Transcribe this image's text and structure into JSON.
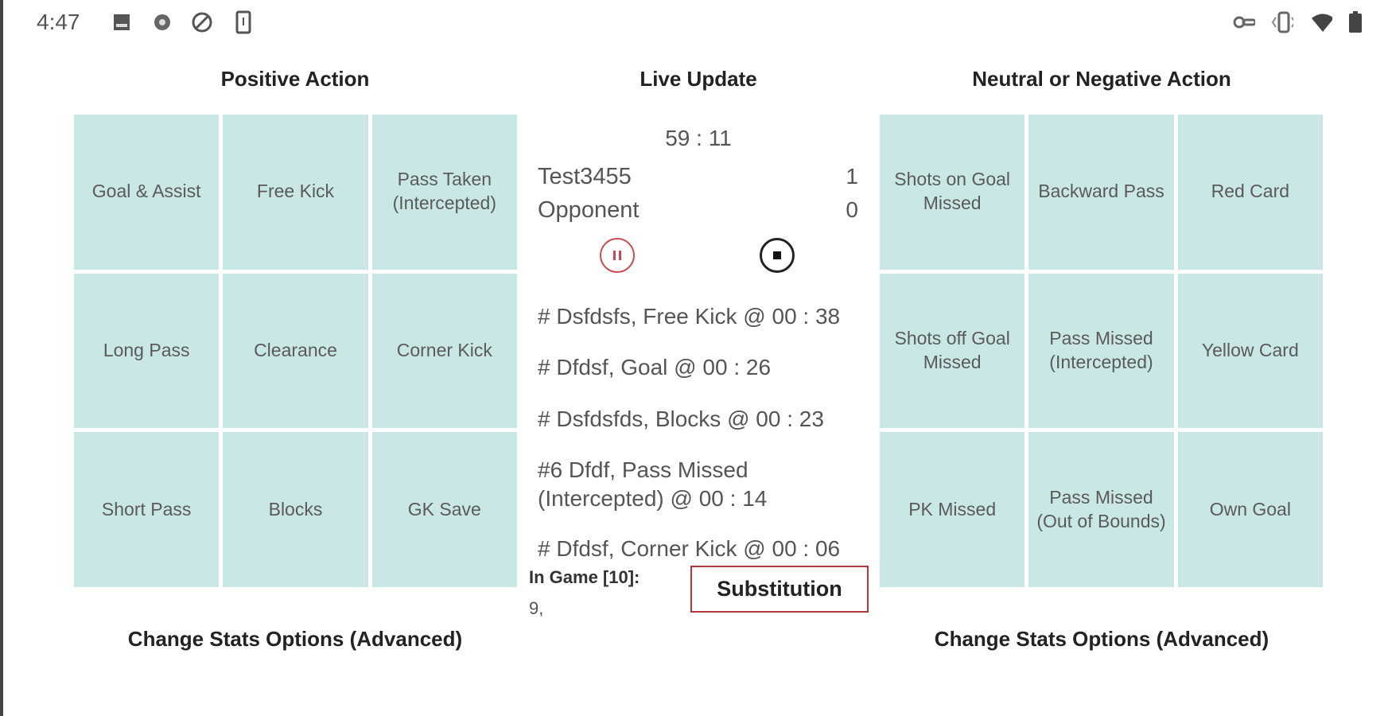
{
  "status_bar": {
    "time": "4:47",
    "left_icons": [
      "image-icon",
      "settings-wheel-icon",
      "sync-disabled-icon",
      "phone-download-icon"
    ],
    "right_icons": [
      "vpn-key-icon",
      "vibrate-icon",
      "wifi-icon",
      "battery-icon"
    ]
  },
  "positive": {
    "title": "Positive Action",
    "buttons": [
      "Goal & Assist",
      "Free Kick",
      "Pass Taken (Intercepted)",
      "Long Pass",
      "Clearance",
      "Corner Kick",
      "Short Pass",
      "Blocks",
      "GK Save"
    ],
    "footer": "Change Stats Options (Advanced)"
  },
  "live": {
    "title": "Live Update",
    "timer": "59 : 11",
    "home_team": "Test3455",
    "home_score": "1",
    "away_team": "Opponent",
    "away_score": "0",
    "log": [
      "# Dsfdsfs, Free Kick @ 00 : 38",
      "# Dfdsf, Goal @ 00 : 26",
      "# Dsfdsfds, Blocks @ 00 : 23",
      "#6 Dfdf, Pass Missed (Intercepted) @ 00 : 14",
      "# Dfdsf, Corner Kick @ 00 : 06"
    ],
    "in_game_label": "In Game [10]:",
    "in_game_value": "9,",
    "substitution": "Substitution"
  },
  "negative": {
    "title": "Neutral or Negative Action",
    "buttons": [
      "Shots on Goal Missed",
      "Backward Pass",
      "Red Card",
      "Shots off Goal Missed",
      "Pass Missed (Intercepted)",
      "Yellow Card",
      "PK Missed",
      "Pass Missed (Out of Bounds)",
      "Own Goal"
    ],
    "footer": "Change Stats Options (Advanced)"
  },
  "colors": {
    "tile": "#c9e8e5",
    "pause": "#c94a55",
    "substitution_border": "#b5373d"
  }
}
